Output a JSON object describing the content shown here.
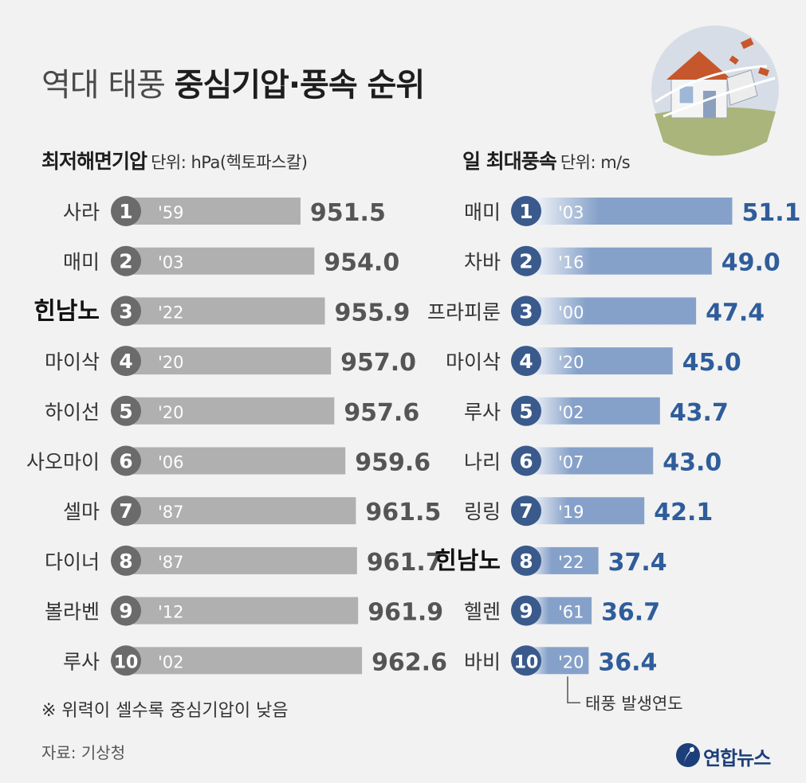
{
  "title": {
    "light": "역대 태풍",
    "bold": "중심기압·풍속 순위"
  },
  "left_section": {
    "title": "최저해면기압",
    "unit": "단위: hPa(헥토파스칼)"
  },
  "right_section": {
    "title": "일 최대풍속",
    "unit": "단위: m/s"
  },
  "note": "※ 위력이 셀수록 중심기압이 낮음",
  "annotation": "태풍 발생연도",
  "source": "자료: 기상청",
  "logo": {
    "text": "연합뉴스",
    "icon": "yonhap-logo-icon"
  },
  "illustration": {
    "icon": "house-storm-icon"
  },
  "colors": {
    "background": "#f2f2f2",
    "left_bar": "#b0b0b0",
    "left_badge": "#6b6b6b",
    "left_value": "#555555",
    "right_bar": "#86a1c9",
    "right_bar_light": "#ffffff",
    "right_badge": "#3a5a8c",
    "right_value": "#2f5d9b",
    "name_text": "#333333",
    "highlight_text": "#111111"
  },
  "chart_data": [
    {
      "type": "bar",
      "title": "최저해면기압",
      "ylabel": "hPa",
      "categories": [
        "사라",
        "매미",
        "힌남노",
        "마이삭",
        "하이선",
        "사오마이",
        "셀마",
        "다이너",
        "볼라벤",
        "루사"
      ],
      "ranks": [
        "1",
        "2",
        "3",
        "4",
        "5",
        "6",
        "7",
        "8",
        "9",
        "10"
      ],
      "years": [
        "'59",
        "'03",
        "'22",
        "'20",
        "'20",
        "'06",
        "'87",
        "'87",
        "'12",
        "'02"
      ],
      "values": [
        951.5,
        954.0,
        955.9,
        957.0,
        957.6,
        959.6,
        961.5,
        961.7,
        961.9,
        962.6
      ],
      "labels": [
        "951.5",
        "954.0",
        "955.9",
        "957.0",
        "957.6",
        "959.6",
        "961.5",
        "961.7",
        "961.9",
        "962.6"
      ],
      "highlight": [
        false,
        false,
        true,
        false,
        false,
        false,
        false,
        false,
        false,
        false
      ],
      "axis_min": 920
    },
    {
      "type": "bar",
      "title": "일 최대풍속",
      "ylabel": "m/s",
      "categories": [
        "매미",
        "차바",
        "프라피룬",
        "마이삭",
        "루사",
        "나리",
        "링링",
        "힌남노",
        "헬렌",
        "바비"
      ],
      "ranks": [
        "1",
        "2",
        "3",
        "4",
        "5",
        "6",
        "7",
        "8",
        "9",
        "10"
      ],
      "years": [
        "'03",
        "'16",
        "'00",
        "'20",
        "'02",
        "'07",
        "'19",
        "'22",
        "'61",
        "'20"
      ],
      "values": [
        51.1,
        49.0,
        47.4,
        45.0,
        43.7,
        43.0,
        42.1,
        37.4,
        36.7,
        36.4
      ],
      "labels": [
        "51.1",
        "49.0",
        "47.4",
        "45.0",
        "43.7",
        "43.0",
        "42.1",
        "37.4",
        "36.7",
        "36.4"
      ],
      "highlight": [
        false,
        false,
        false,
        false,
        false,
        false,
        false,
        true,
        false,
        false
      ],
      "axis_min": 30
    }
  ]
}
